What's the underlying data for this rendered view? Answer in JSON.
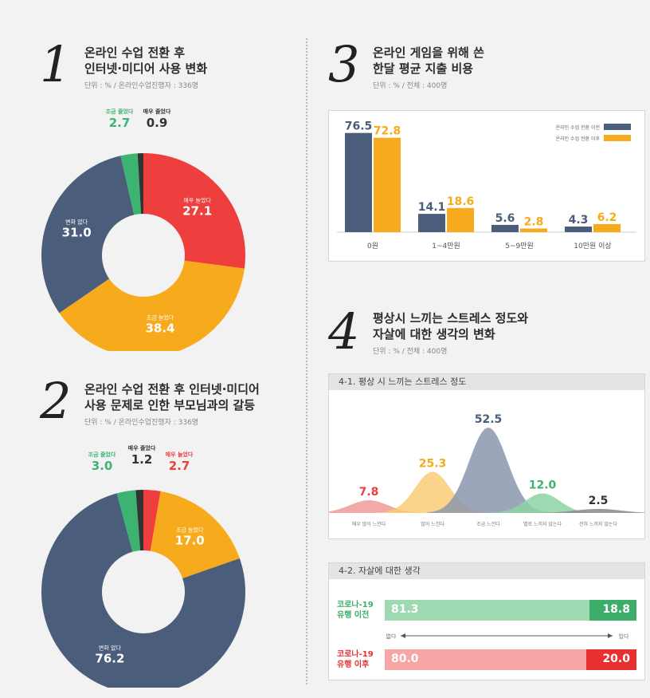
{
  "sections": {
    "s1": {
      "number": "1",
      "title1": "온라인 수업 전환 후",
      "title2": "인터넷·미디어 사용 변화",
      "sub": "단위 : % / 온라인수업진행자 : 336명"
    },
    "s2": {
      "number": "2",
      "title1": "온라인 수업 전환 후 인터넷·미디어",
      "title2": "사용 문제로 인한 부모님과의 갈등",
      "sub": "단위 : % / 온라인수업진행자 : 336명"
    },
    "s3": {
      "number": "3",
      "title1": "온라인 게임을 위해 쓴",
      "title2": "한달 평균 지출 비용",
      "sub": "단위 : % / 전체 : 400명"
    },
    "s4": {
      "number": "4",
      "title1": "평상시 느끼는 스트레스 정도와",
      "title2": "자살에 대한 생각의 변화",
      "sub": "단위 : % / 전체 : 400명",
      "panel1_title": "4-1. 평상 시 느끼는 스트레스 정도",
      "panel2_title": "4-2. 자살에 대한 생각"
    }
  },
  "colors": {
    "navy": "#4a5d7a",
    "orange": "#f7aa1c",
    "red": "#ee3e3e",
    "green": "#3cb371",
    "dark": "#333333"
  },
  "chart_data": [
    {
      "type": "pie",
      "id": "chart1",
      "labels": [
        "매우 늘었다",
        "조금 늘었다",
        "변화 없다",
        "조금 줄었다",
        "매우 줄었다"
      ],
      "values": [
        27.1,
        38.4,
        31.0,
        2.7,
        0.9
      ],
      "value_labels": [
        "27.1",
        "38.4",
        "31.0",
        "2.7",
        "0.9"
      ],
      "colors": [
        "#ee3e3e",
        "#f7aa1c",
        "#4a5d7a",
        "#3cb371",
        "#333333"
      ]
    },
    {
      "type": "pie",
      "id": "chart2",
      "labels": [
        "매우 늘었다",
        "조금 늘었다",
        "변화 없다",
        "조금 줄었다",
        "매우 줄었다"
      ],
      "values": [
        2.7,
        17.0,
        76.2,
        3.0,
        1.2
      ],
      "value_labels": [
        "2.7",
        "17.0",
        "76.2",
        "3.0",
        "1.2"
      ],
      "colors": [
        "#ee3e3e",
        "#f7aa1c",
        "#4a5d7a",
        "#3cb371",
        "#333333"
      ]
    },
    {
      "type": "bar",
      "id": "chart3",
      "categories": [
        "0원",
        "1~4만원",
        "5~9만원",
        "10만원 이상"
      ],
      "series": [
        {
          "name": "온라인 수업 전환 이전",
          "values": [
            76.5,
            14.1,
            5.6,
            4.3
          ],
          "value_labels": [
            "76.5",
            "14.1",
            "5.6",
            "4.3"
          ],
          "color": "#4a5d7a"
        },
        {
          "name": "온라인 수업 전환 이후",
          "values": [
            72.8,
            18.6,
            2.8,
            6.2
          ],
          "value_labels": [
            "72.8",
            "18.6",
            "2.8",
            "6.2"
          ],
          "color": "#f7aa1c"
        }
      ],
      "ylim": [
        0,
        80
      ]
    },
    {
      "type": "area",
      "id": "chart4_1",
      "categories": [
        "매우 많이 느낀다",
        "많이 느낀다",
        "조금 느낀다",
        "별로 느끼지 않는다",
        "전혀 느끼지 않는다"
      ],
      "values": [
        7.8,
        25.3,
        52.5,
        12.0,
        2.5
      ],
      "value_labels": [
        "7.8",
        "25.3",
        "52.5",
        "12.0",
        "2.5"
      ],
      "colors": [
        "#f29a9a",
        "#f9cd76",
        "#8a98ab",
        "#8ed2a4",
        "#888888"
      ],
      "label_colors": [
        "#ee3e3e",
        "#f7aa1c",
        "#4a5d7a",
        "#3cb371",
        "#333333"
      ],
      "ylim": [
        0,
        55
      ]
    },
    {
      "type": "bar",
      "id": "chart4_2",
      "stacked": true,
      "horizontal": true,
      "categories": [
        "코로나-19 유행 이전",
        "코로나-19 유행 이후"
      ],
      "category_lines": [
        [
          "코로나-19",
          "유행 이전"
        ],
        [
          "코로나-19",
          "유행 이후"
        ]
      ],
      "series": [
        {
          "name": "없다",
          "values": [
            81.3,
            80.0
          ],
          "value_labels": [
            "81.3",
            "80.0"
          ]
        },
        {
          "name": "있다",
          "values": [
            18.8,
            20.0
          ],
          "value_labels": [
            "18.8",
            "20.0"
          ]
        }
      ],
      "axis_left": "없다",
      "axis_right": "있다"
    }
  ]
}
